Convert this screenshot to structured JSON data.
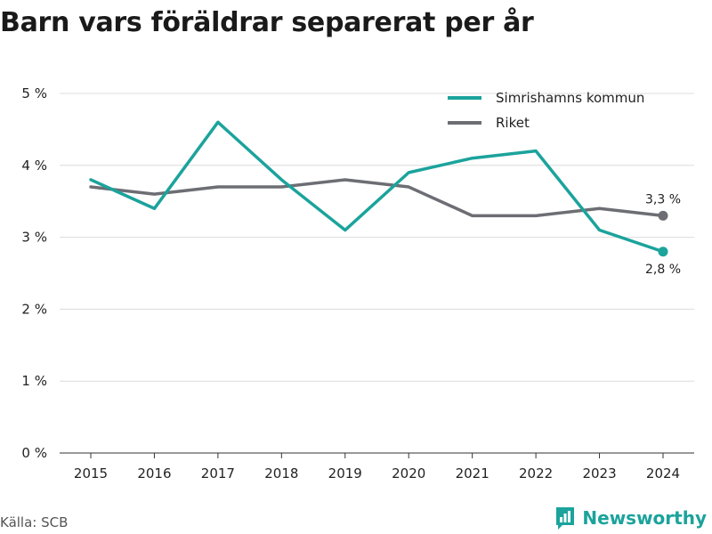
{
  "chart_data": {
    "type": "line",
    "title": "Barn vars föräldrar separerat per år",
    "x": [
      "2015",
      "2016",
      "2017",
      "2018",
      "2019",
      "2020",
      "2021",
      "2022",
      "2023",
      "2024"
    ],
    "y_ticks": [
      "0 %",
      "1 %",
      "2 %",
      "3 %",
      "4 %",
      "5 %"
    ],
    "ylim": [
      0,
      5
    ],
    "grid": true,
    "legend_position": "top-right",
    "series": [
      {
        "name": "Simrishamns kommun",
        "color": "#1ba39c",
        "values": [
          3.8,
          3.4,
          4.6,
          3.8,
          3.1,
          3.9,
          4.1,
          4.2,
          3.1,
          2.8
        ],
        "end_label": "2,8 %"
      },
      {
        "name": "Riket",
        "color": "#6d6e74",
        "values": [
          3.7,
          3.6,
          3.7,
          3.7,
          3.8,
          3.7,
          3.3,
          3.3,
          3.4,
          3.3
        ],
        "end_label": "3,3 %"
      }
    ]
  },
  "footer": {
    "source": "Källa: SCB",
    "brand": "Newsworthy"
  },
  "brand_color": "#1ba39c"
}
